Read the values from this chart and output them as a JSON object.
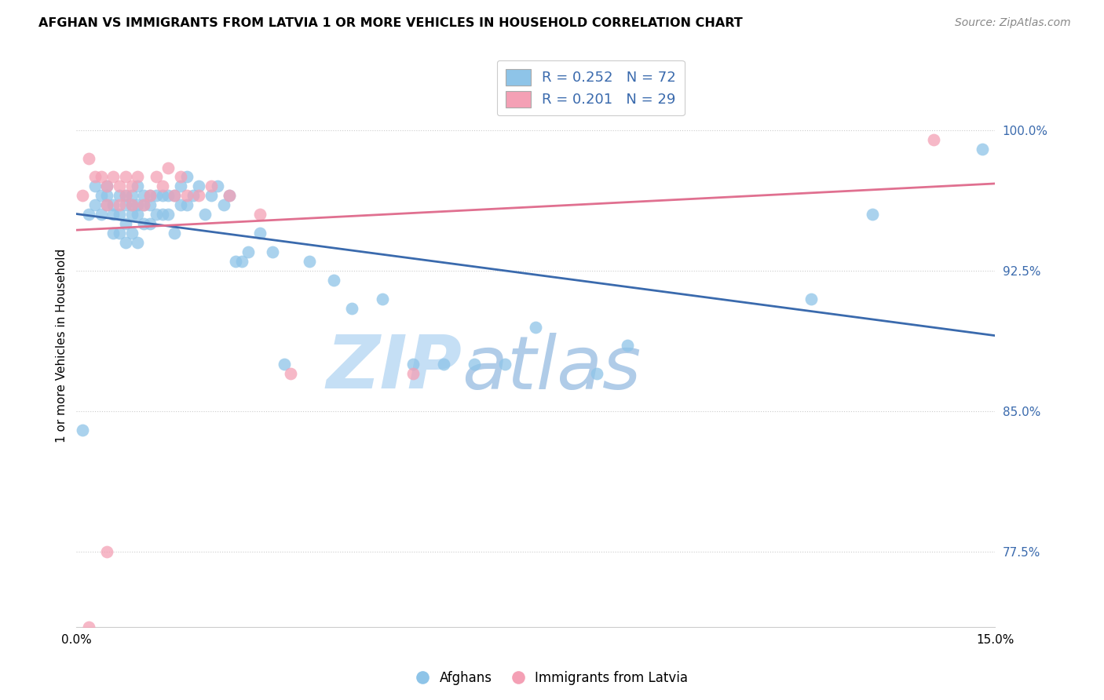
{
  "title": "AFGHAN VS IMMIGRANTS FROM LATVIA 1 OR MORE VEHICLES IN HOUSEHOLD CORRELATION CHART",
  "source": "Source: ZipAtlas.com",
  "ylabel": "1 or more Vehicles in Household",
  "ytick_labels": [
    "100.0%",
    "92.5%",
    "85.0%",
    "77.5%"
  ],
  "ytick_values": [
    1.0,
    0.925,
    0.85,
    0.775
  ],
  "xmin": 0.0,
  "xmax": 0.15,
  "ymin": 0.735,
  "ymax": 1.035,
  "legend_blue_r": "R = 0.252",
  "legend_blue_n": "N = 72",
  "legend_pink_r": "R = 0.201",
  "legend_pink_n": "N = 29",
  "legend_label_blue": "Afghans",
  "legend_label_pink": "Immigrants from Latvia",
  "blue_color": "#8ec4e8",
  "pink_color": "#f4a0b5",
  "blue_line_color": "#3a6aad",
  "pink_line_color": "#e07090",
  "watermark_zip_color": "#c8dff0",
  "watermark_atlas_color": "#b8c8e8",
  "blue_scatter_x": [
    0.001,
    0.002,
    0.003,
    0.003,
    0.004,
    0.004,
    0.005,
    0.005,
    0.005,
    0.006,
    0.006,
    0.006,
    0.007,
    0.007,
    0.007,
    0.008,
    0.008,
    0.008,
    0.008,
    0.009,
    0.009,
    0.009,
    0.009,
    0.01,
    0.01,
    0.01,
    0.01,
    0.011,
    0.011,
    0.011,
    0.012,
    0.012,
    0.012,
    0.013,
    0.013,
    0.014,
    0.014,
    0.015,
    0.015,
    0.016,
    0.016,
    0.017,
    0.017,
    0.018,
    0.018,
    0.019,
    0.02,
    0.021,
    0.022,
    0.023,
    0.024,
    0.025,
    0.026,
    0.027,
    0.028,
    0.03,
    0.032,
    0.034,
    0.038,
    0.042,
    0.045,
    0.05,
    0.055,
    0.06,
    0.065,
    0.07,
    0.075,
    0.085,
    0.09,
    0.12,
    0.13,
    0.148
  ],
  "blue_scatter_y": [
    0.84,
    0.955,
    0.96,
    0.97,
    0.955,
    0.965,
    0.96,
    0.965,
    0.97,
    0.945,
    0.955,
    0.96,
    0.945,
    0.955,
    0.965,
    0.94,
    0.95,
    0.96,
    0.965,
    0.945,
    0.955,
    0.96,
    0.965,
    0.94,
    0.955,
    0.96,
    0.97,
    0.95,
    0.96,
    0.965,
    0.95,
    0.96,
    0.965,
    0.955,
    0.965,
    0.955,
    0.965,
    0.955,
    0.965,
    0.945,
    0.965,
    0.96,
    0.97,
    0.96,
    0.975,
    0.965,
    0.97,
    0.955,
    0.965,
    0.97,
    0.96,
    0.965,
    0.93,
    0.93,
    0.935,
    0.945,
    0.935,
    0.875,
    0.93,
    0.92,
    0.905,
    0.91,
    0.875,
    0.875,
    0.875,
    0.875,
    0.895,
    0.87,
    0.885,
    0.91,
    0.955,
    0.99
  ],
  "pink_scatter_x": [
    0.001,
    0.002,
    0.003,
    0.004,
    0.005,
    0.005,
    0.006,
    0.007,
    0.007,
    0.008,
    0.008,
    0.009,
    0.009,
    0.01,
    0.011,
    0.012,
    0.013,
    0.014,
    0.015,
    0.016,
    0.017,
    0.018,
    0.02,
    0.022,
    0.025,
    0.03,
    0.035,
    0.055,
    0.14
  ],
  "pink_scatter_y": [
    0.965,
    0.985,
    0.975,
    0.975,
    0.96,
    0.97,
    0.975,
    0.96,
    0.97,
    0.965,
    0.975,
    0.96,
    0.97,
    0.975,
    0.96,
    0.965,
    0.975,
    0.97,
    0.98,
    0.965,
    0.975,
    0.965,
    0.965,
    0.97,
    0.965,
    0.955,
    0.87,
    0.87,
    0.995
  ],
  "pink_outlier_x": [
    0.005
  ],
  "pink_outlier_y": [
    0.775
  ],
  "pink_low_x": [
    0.002
  ],
  "pink_low_y": [
    0.735
  ]
}
